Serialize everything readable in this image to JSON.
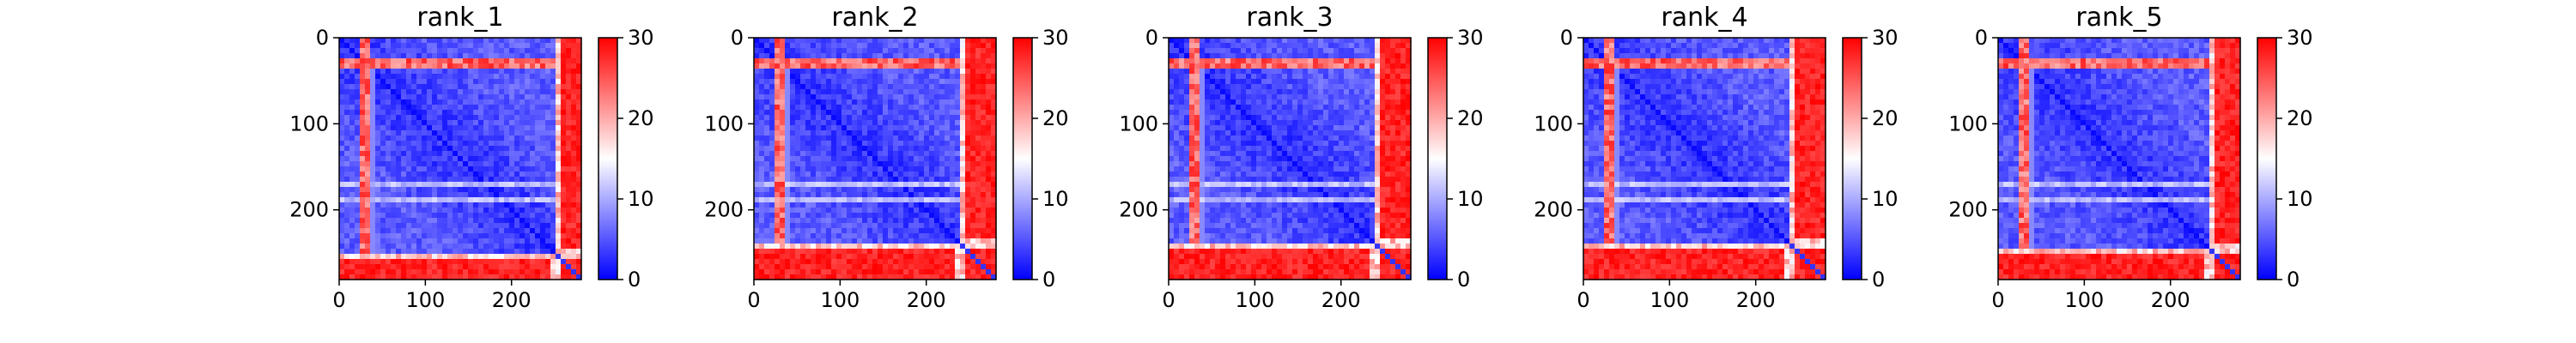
{
  "chart_data": [
    {
      "type": "heatmap",
      "title": "rank_1",
      "x_ticks": [
        "0",
        "100",
        "200"
      ],
      "y_ticks": [
        "0",
        "100",
        "200"
      ],
      "xlim": [
        0,
        281
      ],
      "ylim": [
        281,
        0
      ],
      "colorbar": {
        "min": 0,
        "max": 30,
        "ticks": [
          "0",
          "10",
          "20",
          "30"
        ],
        "colormap": "bwr"
      },
      "region_boundary": 250,
      "high_bands_rows": [
        30
      ],
      "light_bands_rows": [
        172,
        190
      ],
      "matrix_size": 281
    },
    {
      "type": "heatmap",
      "title": "rank_2",
      "x_ticks": [
        "0",
        "100",
        "200"
      ],
      "y_ticks": [
        "0",
        "100",
        "200"
      ],
      "xlim": [
        0,
        281
      ],
      "ylim": [
        281,
        0
      ],
      "colorbar": {
        "min": 0,
        "max": 30,
        "ticks": [
          "0",
          "10",
          "20",
          "30"
        ],
        "colormap": "bwr"
      },
      "region_boundary": 240,
      "high_bands_rows": [
        30
      ],
      "light_bands_rows": [
        172,
        190
      ],
      "matrix_size": 281
    },
    {
      "type": "heatmap",
      "title": "rank_3",
      "x_ticks": [
        "0",
        "100",
        "200"
      ],
      "y_ticks": [
        "0",
        "100",
        "200"
      ],
      "xlim": [
        0,
        281
      ],
      "ylim": [
        281,
        0
      ],
      "colorbar": {
        "min": 0,
        "max": 30,
        "ticks": [
          "0",
          "10",
          "20",
          "30"
        ],
        "colormap": "bwr"
      },
      "region_boundary": 240,
      "high_bands_rows": [
        30
      ],
      "light_bands_rows": [
        172,
        190
      ],
      "matrix_size": 281
    },
    {
      "type": "heatmap",
      "title": "rank_4",
      "x_ticks": [
        "0",
        "100",
        "200"
      ],
      "y_ticks": [
        "0",
        "100",
        "200"
      ],
      "xlim": [
        0,
        281
      ],
      "ylim": [
        281,
        0
      ],
      "colorbar": {
        "min": 0,
        "max": 30,
        "ticks": [
          "0",
          "10",
          "20",
          "30"
        ],
        "colormap": "bwr"
      },
      "region_boundary": 240,
      "high_bands_rows": [
        30
      ],
      "light_bands_rows": [
        172,
        190
      ],
      "matrix_size": 281
    },
    {
      "type": "heatmap",
      "title": "rank_5",
      "x_ticks": [
        "0",
        "100",
        "200"
      ],
      "y_ticks": [
        "0",
        "100",
        "200"
      ],
      "xlim": [
        0,
        281
      ],
      "ylim": [
        281,
        0
      ],
      "colorbar": {
        "min": 0,
        "max": 30,
        "ticks": [
          "0",
          "10",
          "20",
          "30"
        ],
        "colormap": "bwr"
      },
      "region_boundary": 245,
      "high_bands_rows": [
        30
      ],
      "light_bands_rows": [
        172,
        190
      ],
      "matrix_size": 281
    }
  ],
  "colors": {
    "low": "#0000ff",
    "mid": "#ffffff",
    "high": "#ff0000",
    "axis": "#000000"
  }
}
